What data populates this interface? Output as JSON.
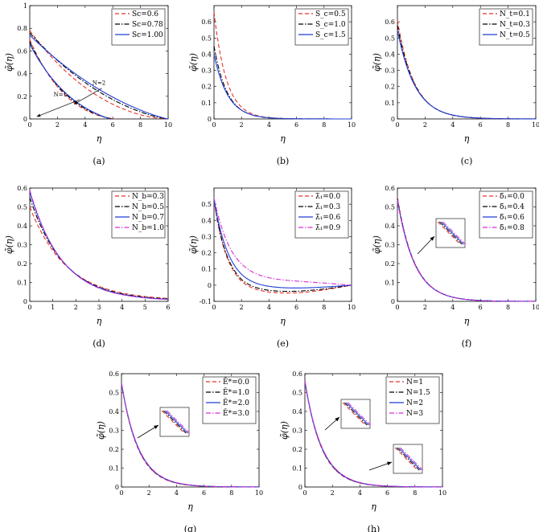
{
  "chart_data": [
    {
      "id": "a",
      "type": "line",
      "caption": "(a)",
      "xlabel": "η",
      "ylabel": "φ̃(η)",
      "xlim": [
        0,
        10
      ],
      "ylim": [
        0,
        1
      ],
      "xticks": [
        "0",
        "2",
        "4",
        "6",
        "8",
        "10"
      ],
      "yticks": [
        "0",
        "0.2",
        "0.4",
        "0.6",
        "0.8",
        "1"
      ],
      "legend_position": "top-right",
      "annotations": [
        "N=1",
        "N=2"
      ],
      "series": [
        {
          "name": "Sc=0.6",
          "color": "#e8312a",
          "dash": "dashed",
          "group": "N=2",
          "p": 0.6,
          "shape": "profile",
          "y0": 0.78
        },
        {
          "name": "Sc=0.78",
          "color": "#000000",
          "dash": "dashdot",
          "group": "N=2",
          "p": 0.75,
          "shape": "profile",
          "y0": 0.76
        },
        {
          "name": "Sc=1.00",
          "color": "#1f3fd6",
          "dash": "solid",
          "group": "N=2",
          "p": 0.85,
          "shape": "profile",
          "y0": 0.74
        },
        {
          "name": "",
          "color": "#e8312a",
          "dash": "dashed",
          "group": "N=1",
          "p": 0.72,
          "shape": "profile",
          "y0": 0.7,
          "end": 6.2
        },
        {
          "name": "",
          "color": "#000000",
          "dash": "dashdot",
          "group": "N=1",
          "p": 0.85,
          "shape": "profile",
          "y0": 0.68,
          "end": 6.0
        },
        {
          "name": "",
          "color": "#1f3fd6",
          "dash": "solid",
          "group": "N=1",
          "p": 1.0,
          "shape": "profile",
          "y0": 0.66,
          "end": 5.8
        }
      ]
    },
    {
      "id": "b",
      "type": "line",
      "caption": "(b)",
      "xlabel": "η",
      "ylabel": "φ̃(η)",
      "xlim": [
        0,
        10
      ],
      "ylim": [
        0,
        0.7
      ],
      "xticks": [
        "0",
        "2",
        "4",
        "6",
        "8",
        "10"
      ],
      "yticks": [
        "0",
        "0.1",
        "0.2",
        "0.3",
        "0.4",
        "0.5",
        "0.6"
      ],
      "legend_position": "top-right",
      "series": [
        {
          "name": "S_c=0.5",
          "color": "#e8312a",
          "dash": "dashed",
          "y0": 0.66,
          "k": 1.1
        },
        {
          "name": "S_c=1.0",
          "color": "#000000",
          "dash": "dashdot",
          "y0": 0.45,
          "k": 1.05
        },
        {
          "name": "S_c=1.5",
          "color": "#1f3fd6",
          "dash": "solid",
          "y0": 0.4,
          "k": 1.0
        }
      ]
    },
    {
      "id": "c",
      "type": "line",
      "caption": "(c)",
      "xlabel": "η",
      "ylabel": "φ̃(η)",
      "xlim": [
        0,
        10
      ],
      "ylim": [
        0,
        0.7
      ],
      "xticks": [
        "0",
        "2",
        "4",
        "6",
        "8",
        "10"
      ],
      "yticks": [
        "0",
        "0.1",
        "0.2",
        "0.3",
        "0.4",
        "0.5",
        "0.6"
      ],
      "legend_position": "top-right",
      "series": [
        {
          "name": "N_t=0.1",
          "color": "#e8312a",
          "dash": "dashed",
          "y0": 0.61,
          "k": 0.82
        },
        {
          "name": "N_t=0.3",
          "color": "#000000",
          "dash": "dashdot",
          "y0": 0.58,
          "k": 0.8
        },
        {
          "name": "N_t=0.5",
          "color": "#1f3fd6",
          "dash": "solid",
          "y0": 0.55,
          "k": 0.78
        }
      ]
    },
    {
      "id": "d",
      "type": "line",
      "caption": "(d)",
      "xlabel": "η",
      "ylabel": "φ̃(η)",
      "xlim": [
        0,
        6
      ],
      "ylim": [
        0,
        0.6
      ],
      "xticks": [
        "0",
        "1",
        "2",
        "3",
        "4",
        "5",
        "6"
      ],
      "yticks": [
        "0",
        "0.1",
        "0.2",
        "0.3",
        "0.4",
        "0.5",
        "0.6"
      ],
      "legend_position": "top-right",
      "series": [
        {
          "name": "N_b=0.3",
          "color": "#e8312a",
          "dash": "dashed",
          "y0": 0.5,
          "k": 0.66,
          "tail": 0.02
        },
        {
          "name": "N_b=0.5",
          "color": "#000000",
          "dash": "dashdot",
          "y0": 0.55,
          "k": 0.7,
          "tail": 0.015
        },
        {
          "name": "N_b=0.7",
          "color": "#1f3fd6",
          "dash": "solid",
          "y0": 0.58,
          "k": 0.72,
          "tail": 0.01
        },
        {
          "name": "N_b=1.0",
          "color": "#d62ed6",
          "dash": "dashdot",
          "y0": 0.59,
          "k": 0.73,
          "tail": 0.008
        }
      ]
    },
    {
      "id": "e",
      "type": "line",
      "caption": "(e)",
      "xlabel": "η",
      "ylabel": "φ̃(η)",
      "xlim": [
        0,
        10
      ],
      "ylim": [
        -0.1,
        0.6
      ],
      "xticks": [
        "0",
        "2",
        "4",
        "6",
        "8",
        "10"
      ],
      "yticks": [
        "-0.1",
        "0",
        "0.1",
        "0.2",
        "0.3",
        "0.4",
        "0.5"
      ],
      "legend_position": "top-right",
      "series": [
        {
          "name": "λ̃₁=0.0",
          "color": "#e8312a",
          "dash": "dashed",
          "y0": 0.53,
          "shape": "dip",
          "k": 1.15,
          "a": 0.05,
          "t": 10
        },
        {
          "name": "λ̃₁=0.3",
          "color": "#000000",
          "dash": "dashdot",
          "y0": 0.53,
          "shape": "dip",
          "k": 1.1,
          "a": 0.04,
          "t": 10
        },
        {
          "name": "λ̃₁=0.6",
          "color": "#1f3fd6",
          "dash": "solid",
          "y0": 0.53,
          "shape": "dip",
          "k": 0.95,
          "a": 0.02,
          "t": 10
        },
        {
          "name": "λ̃₁=0.9",
          "color": "#d62ed6",
          "dash": "dashdot",
          "y0": 0.54,
          "shape": "dip",
          "k": 0.75,
          "a": -0.02,
          "t": 10
        }
      ]
    },
    {
      "id": "f",
      "type": "line",
      "caption": "(f)",
      "xlabel": "η",
      "ylabel": "φ̃(η)",
      "xlim": [
        0,
        10
      ],
      "ylim": [
        0,
        0.6
      ],
      "xticks": [
        "0",
        "2",
        "4",
        "6",
        "8",
        "10"
      ],
      "yticks": [
        "0",
        "0.1",
        "0.2",
        "0.3",
        "0.4",
        "0.5",
        "0.6"
      ],
      "legend_position": "top-right",
      "inset": true,
      "series": [
        {
          "name": "δ̃₁=0.0",
          "color": "#e8312a",
          "dash": "dashed",
          "y0": 0.55,
          "k": 0.8
        },
        {
          "name": "δ̃₁=0.4",
          "color": "#000000",
          "dash": "dashdot",
          "y0": 0.545,
          "k": 0.8
        },
        {
          "name": "δ̃₁=0.6",
          "color": "#1f3fd6",
          "dash": "solid",
          "y0": 0.54,
          "k": 0.8
        },
        {
          "name": "δ̃₁=0.8",
          "color": "#d62ed6",
          "dash": "dashdot",
          "y0": 0.535,
          "k": 0.8
        }
      ]
    },
    {
      "id": "g",
      "type": "line",
      "caption": "(g)",
      "xlabel": "η",
      "ylabel": "φ̃(η)",
      "xlim": [
        0,
        10
      ],
      "ylim": [
        0,
        0.6
      ],
      "xticks": [
        "0",
        "2",
        "4",
        "6",
        "8",
        "10"
      ],
      "yticks": [
        "0",
        "0.1",
        "0.2",
        "0.3",
        "0.4",
        "0.5",
        "0.6"
      ],
      "legend_position": "top-right",
      "inset": true,
      "series": [
        {
          "name": "Ẽ*=0.0",
          "color": "#e8312a",
          "dash": "dashed",
          "y0": 0.55,
          "k": 0.82
        },
        {
          "name": "Ẽ*=1.0",
          "color": "#000000",
          "dash": "dashdot",
          "y0": 0.55,
          "k": 0.81
        },
        {
          "name": "Ẽ*=2.0",
          "color": "#1f3fd6",
          "dash": "solid",
          "y0": 0.55,
          "k": 0.8
        },
        {
          "name": "Ẽ*=3.0",
          "color": "#d62ed6",
          "dash": "dashdot",
          "y0": 0.55,
          "k": 0.79
        }
      ]
    },
    {
      "id": "h",
      "type": "line",
      "caption": "(h)",
      "xlabel": "η",
      "ylabel": "φ̃(η)",
      "xlim": [
        0,
        10
      ],
      "ylim": [
        0,
        0.6
      ],
      "xticks": [
        "0",
        "2",
        "4",
        "6",
        "8",
        "10"
      ],
      "yticks": [
        "0",
        "0.1",
        "0.2",
        "0.3",
        "0.4",
        "0.5",
        "0.6"
      ],
      "legend_position": "top-right",
      "inset": true,
      "series": [
        {
          "name": "N=1",
          "color": "#e8312a",
          "dash": "dashed",
          "y0": 0.56,
          "k": 0.82
        },
        {
          "name": "N=1.5",
          "color": "#000000",
          "dash": "dashdot",
          "y0": 0.56,
          "k": 0.81
        },
        {
          "name": "N=2",
          "color": "#1f3fd6",
          "dash": "solid",
          "y0": 0.56,
          "k": 0.8
        },
        {
          "name": "N=3",
          "color": "#d62ed6",
          "dash": "dashdot",
          "y0": 0.56,
          "k": 0.79
        }
      ]
    }
  ]
}
